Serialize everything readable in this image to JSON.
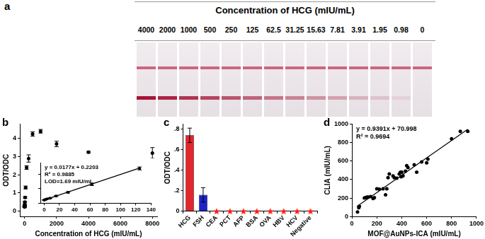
{
  "strips": {
    "panel": "a",
    "title": "Concentration of HCG (mIU/mL)",
    "concentrations": [
      4000,
      2000,
      1000,
      500,
      250,
      125,
      62.5,
      31.25,
      15.63,
      7.81,
      3.91,
      1.95,
      0.98,
      0
    ]
  },
  "chart_data": [
    {
      "panel": "b",
      "type": "scatter",
      "x_label": "Concentration of HCG (mIU/mL)",
      "y_label": "ODT/ODC",
      "xlim": [
        -300,
        8300
      ],
      "xticks": [
        0,
        2000,
        4000,
        6000,
        8000
      ],
      "ylim": [
        -0.3,
        4.8
      ],
      "yticks": [
        0,
        1,
        2,
        3,
        4
      ],
      "grid": false,
      "series": [
        {
          "type": "scatter",
          "color": "#000000",
          "marker": "circle",
          "x": [
            0,
            0.98,
            1.95,
            3.91,
            7.81,
            15.63,
            31.25,
            62.5,
            125,
            250,
            500,
            1000,
            2000,
            4000,
            8000
          ],
          "values": [
            0.22,
            0.24,
            0.26,
            0.3,
            0.35,
            0.5,
            0.75,
            1.3,
            2.4,
            2.9,
            4.25,
            4.4,
            3.7,
            3.25,
            3.2
          ],
          "errors": [
            0.02,
            0.02,
            0.02,
            0.03,
            0.03,
            0.04,
            0.05,
            0.08,
            0.1,
            0.2,
            0.12,
            0.1,
            0.15,
            0.05,
            0.3
          ]
        }
      ],
      "inset": {
        "type": "scatter",
        "xlim": [
          -5,
          140
        ],
        "xticks": [
          0,
          20,
          40,
          60,
          80,
          100,
          120,
          140
        ],
        "ylim": [
          0,
          2.8
        ],
        "yticks": [
          0,
          1,
          2
        ],
        "tick_labels": "x",
        "grid": false,
        "annotations": [
          "y = 0.0177x + 0.2203",
          "R² = 0.9885",
          "LOD=1.69 mIU/mL"
        ],
        "series": [
          {
            "type": "scatter",
            "color": "#000000",
            "marker": "circle",
            "x": [
              0,
              0.98,
              1.95,
              3.91,
              7.81,
              15.63,
              31.25,
              62.5,
              125
            ],
            "values": [
              0.22,
              0.24,
              0.26,
              0.3,
              0.35,
              0.5,
              0.75,
              1.3,
              2.4
            ],
            "errors": [
              0.02,
              0.02,
              0.02,
              0.03,
              0.03,
              0.04,
              0.05,
              0.08,
              0.1
            ]
          },
          {
            "type": "line",
            "color": "#000000",
            "line_style": "solid",
            "x": [
              0,
              125
            ],
            "values": [
              0.22,
              2.43
            ]
          }
        ]
      }
    },
    {
      "panel": "c",
      "type": "bar",
      "y_label": "ODT/ODC",
      "categories": [
        "HCG",
        "FSH",
        "CEA",
        "PCT",
        "AFP",
        "BSA",
        "OVA",
        "HBV",
        "HCV",
        "Negative"
      ],
      "values": [
        0.74,
        0.16,
        0,
        0,
        0,
        0,
        0,
        0,
        0,
        0
      ],
      "errors": [
        0.07,
        0.07,
        0,
        0,
        0,
        0,
        0,
        0,
        0,
        0
      ],
      "colors": [
        "#e3262d",
        "#1e22c8",
        "#ff1a1a",
        "#ff1a1a",
        "#ff1a1a",
        "#ff1a1a",
        "#ff1a1a",
        "#ff1a1a",
        "#ff1a1a",
        "#ff1a1a"
      ],
      "marker": "star",
      "ylim": [
        0,
        0.85
      ],
      "yticks": [
        0,
        {
          "value": 0.2,
          "label": ".2"
        },
        {
          "value": 0.4,
          "label": ".4"
        },
        {
          "value": 0.6,
          "label": ".6"
        },
        {
          "value": 0.8,
          "label": ".8"
        }
      ],
      "grid": false
    },
    {
      "panel": "d",
      "type": "scatter",
      "x_label": "MOF@AuNPs-ICA (mIU/mL)",
      "y_label": "CLIA (mIU/mL)",
      "xlim": [
        0,
        1000
      ],
      "xticks": [
        0,
        200,
        400,
        600,
        800,
        1000
      ],
      "ylim": [
        0,
        1000
      ],
      "yticks": [
        0,
        200,
        400,
        600,
        800,
        1000
      ],
      "grid": false,
      "annotations": [
        "y = 0.9391x + 70.998",
        "R² = 0.9694"
      ],
      "series": [
        {
          "type": "scatter",
          "color": "#000000",
          "marker": "circle",
          "x": [
            45,
            55,
            60,
            100,
            110,
            120,
            130,
            150,
            170,
            180,
            200,
            220,
            250,
            270,
            280,
            290,
            300,
            330,
            340,
            360,
            380,
            390,
            395,
            400,
            410,
            430,
            440,
            450,
            500,
            520,
            560,
            600,
            610,
            800,
            870,
            930
          ],
          "values": [
            50,
            95,
            110,
            200,
            205,
            210,
            210,
            215,
            195,
            205,
            300,
            295,
            300,
            235,
            300,
            420,
            460,
            440,
            420,
            415,
            460,
            480,
            430,
            480,
            440,
            490,
            550,
            530,
            560,
            480,
            590,
            580,
            620,
            840,
            920,
            920
          ]
        },
        {
          "type": "line",
          "color": "#000000",
          "line_style": "solid",
          "x": [
            40,
            930
          ],
          "values": [
            108.6,
            944.4
          ]
        }
      ]
    }
  ]
}
